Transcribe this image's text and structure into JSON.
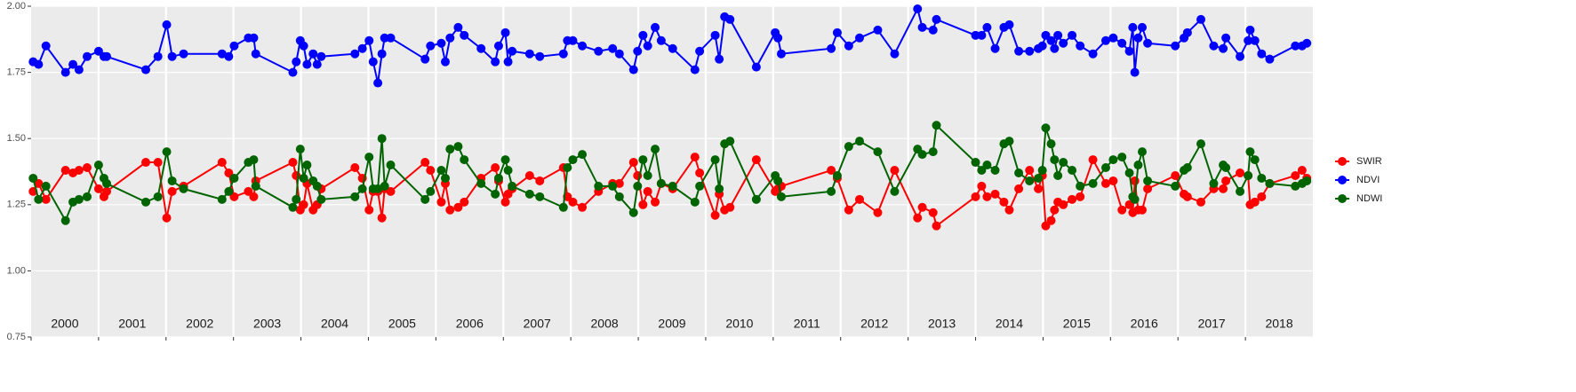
{
  "chart_data": {
    "type": "line",
    "x": [
      2000.03,
      2000.11,
      2000.22,
      2000.51,
      2000.62,
      2000.71,
      2000.83,
      2001.0,
      2001.08,
      2001.12,
      2001.7,
      2001.88,
      2002.01,
      2002.09,
      2002.26,
      2002.83,
      2002.93,
      2003.01,
      2003.22,
      2003.3,
      2003.33,
      2003.88,
      2003.93,
      2003.99,
      2004.04,
      2004.09,
      2004.18,
      2004.24,
      2004.3,
      2004.8,
      2004.91,
      2005.01,
      2005.07,
      2005.14,
      2005.2,
      2005.24,
      2005.33,
      2005.84,
      2005.92,
      2006.08,
      2006.14,
      2006.21,
      2006.33,
      2006.42,
      2006.67,
      2006.88,
      2006.93,
      2007.03,
      2007.07,
      2007.13,
      2007.39,
      2007.54,
      2007.89,
      2007.95,
      2008.03,
      2008.17,
      2008.41,
      2008.62,
      2008.72,
      2008.93,
      2008.99,
      2009.07,
      2009.14,
      2009.25,
      2009.34,
      2009.51,
      2009.84,
      2009.91,
      2010.14,
      2010.2,
      2010.28,
      2010.36,
      2010.75,
      2011.03,
      2011.07,
      2011.12,
      2011.86,
      2011.95,
      2012.12,
      2012.28,
      2012.55,
      2012.8,
      2013.14,
      2013.21,
      2013.37,
      2013.42,
      2014.0,
      2014.09,
      2014.17,
      2014.29,
      2014.42,
      2014.5,
      2014.64,
      2014.8,
      2014.93,
      2014.99,
      2015.04,
      2015.12,
      2015.17,
      2015.22,
      2015.3,
      2015.43,
      2015.55,
      2015.74,
      2015.93,
      2016.04,
      2016.17,
      2016.28,
      2016.33,
      2016.36,
      2016.41,
      2016.47,
      2016.55,
      2016.96,
      2017.09,
      2017.14,
      2017.34,
      2017.53,
      2017.67,
      2017.71,
      2017.92,
      2018.04,
      2018.07,
      2018.14,
      2018.24,
      2018.36,
      2018.74,
      2018.84,
      2018.91
    ],
    "series": [
      {
        "name": "SWIR",
        "color": "#ff0000",
        "values": [
          1.3,
          1.33,
          1.27,
          1.38,
          1.37,
          1.38,
          1.39,
          1.31,
          1.28,
          1.3,
          1.41,
          1.41,
          1.2,
          1.3,
          1.32,
          1.41,
          1.37,
          1.28,
          1.3,
          1.28,
          1.34,
          1.41,
          1.36,
          1.23,
          1.25,
          1.33,
          1.23,
          1.25,
          1.31,
          1.39,
          1.35,
          1.23,
          1.3,
          1.3,
          1.2,
          1.31,
          1.3,
          1.41,
          1.38,
          1.26,
          1.33,
          1.23,
          1.24,
          1.26,
          1.35,
          1.39,
          1.34,
          1.26,
          1.29,
          1.31,
          1.36,
          1.34,
          1.39,
          1.28,
          1.26,
          1.24,
          1.3,
          1.33,
          1.33,
          1.41,
          1.36,
          1.25,
          1.3,
          1.26,
          1.33,
          1.31,
          1.43,
          1.37,
          1.21,
          1.29,
          1.23,
          1.24,
          1.42,
          1.3,
          1.31,
          1.32,
          1.38,
          1.35,
          1.23,
          1.27,
          1.22,
          1.38,
          1.2,
          1.24,
          1.22,
          1.17,
          1.28,
          1.32,
          1.28,
          1.29,
          1.26,
          1.23,
          1.31,
          1.38,
          1.31,
          1.36,
          1.17,
          1.19,
          1.23,
          1.26,
          1.25,
          1.27,
          1.28,
          1.42,
          1.33,
          1.34,
          1.23,
          1.25,
          1.22,
          1.34,
          1.23,
          1.23,
          1.31,
          1.36,
          1.29,
          1.28,
          1.26,
          1.31,
          1.31,
          1.34,
          1.37,
          1.36,
          1.25,
          1.26,
          1.28,
          1.33,
          1.36,
          1.38,
          1.35
        ]
      },
      {
        "name": "NDVI",
        "color": "#0000ff",
        "values": [
          1.79,
          1.78,
          1.85,
          1.75,
          1.78,
          1.76,
          1.81,
          1.83,
          1.81,
          1.81,
          1.76,
          1.81,
          1.93,
          1.81,
          1.82,
          1.82,
          1.81,
          1.85,
          1.88,
          1.88,
          1.82,
          1.75,
          1.79,
          1.87,
          1.85,
          1.78,
          1.82,
          1.78,
          1.81,
          1.82,
          1.84,
          1.87,
          1.79,
          1.71,
          1.82,
          1.88,
          1.88,
          1.8,
          1.85,
          1.86,
          1.79,
          1.88,
          1.92,
          1.89,
          1.84,
          1.79,
          1.85,
          1.9,
          1.79,
          1.83,
          1.82,
          1.81,
          1.82,
          1.87,
          1.87,
          1.85,
          1.83,
          1.84,
          1.82,
          1.76,
          1.83,
          1.89,
          1.85,
          1.92,
          1.87,
          1.84,
          1.76,
          1.83,
          1.89,
          1.8,
          1.96,
          1.95,
          1.77,
          1.9,
          1.88,
          1.82,
          1.84,
          1.9,
          1.85,
          1.88,
          1.91,
          1.82,
          1.99,
          1.92,
          1.91,
          1.95,
          1.89,
          1.89,
          1.92,
          1.84,
          1.92,
          1.93,
          1.83,
          1.83,
          1.84,
          1.85,
          1.89,
          1.87,
          1.84,
          1.89,
          1.86,
          1.89,
          1.85,
          1.82,
          1.87,
          1.88,
          1.86,
          1.83,
          1.92,
          1.75,
          1.88,
          1.92,
          1.86,
          1.85,
          1.88,
          1.9,
          1.95,
          1.85,
          1.84,
          1.88,
          1.81,
          1.87,
          1.91,
          1.87,
          1.82,
          1.8,
          1.85,
          1.85,
          1.86
        ]
      },
      {
        "name": "NDWI",
        "color": "#006400",
        "values": [
          1.35,
          1.27,
          1.32,
          1.19,
          1.26,
          1.27,
          1.28,
          1.4,
          1.35,
          1.33,
          1.26,
          1.28,
          1.45,
          1.34,
          1.31,
          1.27,
          1.3,
          1.35,
          1.41,
          1.42,
          1.32,
          1.24,
          1.27,
          1.46,
          1.35,
          1.4,
          1.34,
          1.32,
          1.27,
          1.28,
          1.31,
          1.43,
          1.31,
          1.31,
          1.5,
          1.32,
          1.4,
          1.27,
          1.3,
          1.38,
          1.35,
          1.46,
          1.47,
          1.42,
          1.33,
          1.29,
          1.35,
          1.42,
          1.38,
          1.32,
          1.29,
          1.28,
          1.24,
          1.39,
          1.42,
          1.44,
          1.32,
          1.32,
          1.28,
          1.22,
          1.32,
          1.42,
          1.36,
          1.46,
          1.33,
          1.32,
          1.26,
          1.32,
          1.42,
          1.31,
          1.48,
          1.49,
          1.27,
          1.36,
          1.34,
          1.28,
          1.3,
          1.36,
          1.47,
          1.49,
          1.45,
          1.3,
          1.46,
          1.44,
          1.45,
          1.55,
          1.41,
          1.38,
          1.4,
          1.38,
          1.48,
          1.49,
          1.37,
          1.34,
          1.35,
          1.38,
          1.54,
          1.48,
          1.42,
          1.36,
          1.41,
          1.38,
          1.32,
          1.33,
          1.39,
          1.42,
          1.43,
          1.37,
          1.28,
          1.27,
          1.4,
          1.45,
          1.34,
          1.32,
          1.38,
          1.39,
          1.48,
          1.33,
          1.4,
          1.39,
          1.3,
          1.36,
          1.45,
          1.42,
          1.35,
          1.33,
          1.32,
          1.33,
          1.34
        ]
      }
    ],
    "xlim": [
      2000,
      2019
    ],
    "xticks": [
      2000,
      2001,
      2002,
      2003,
      2004,
      2005,
      2006,
      2007,
      2008,
      2009,
      2010,
      2011,
      2012,
      2013,
      2014,
      2015,
      2016,
      2017,
      2018
    ],
    "ylim": [
      0.75,
      2.0
    ],
    "yticks": [
      0.75,
      {
        "value": 1,
        "label": "1.00"
      },
      1.25,
      {
        "value": 1.5,
        "label": "1.50"
      },
      1.75,
      {
        "value": 2,
        "label": "2.00"
      }
    ],
    "grid": true,
    "legend": "right"
  }
}
